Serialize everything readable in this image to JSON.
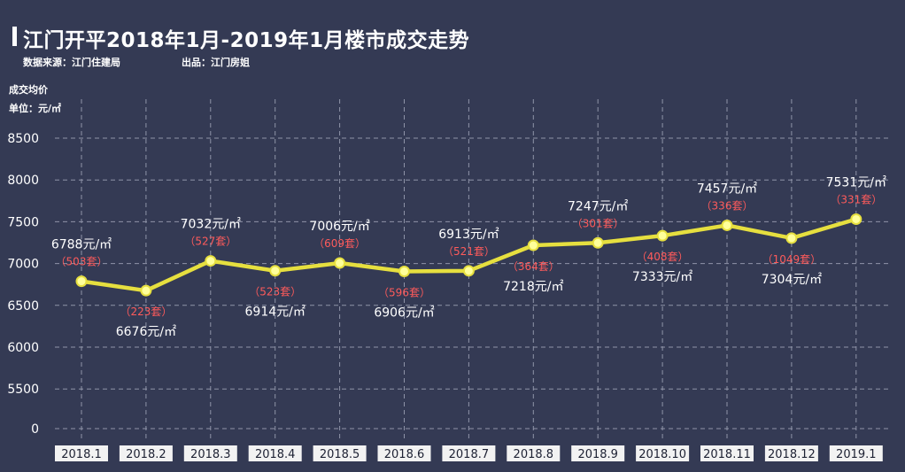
{
  "header": {
    "title": "江门开平2018年1月-2019年1月楼市成交走势",
    "source": "数据来源：江门住建局",
    "producer": "出品：江门房姐"
  },
  "colors": {
    "background": "#343a54",
    "line": "#e6df3f",
    "marker": "#ffff9a",
    "count_text": "#ff5b5b",
    "grid": "#8f94a8"
  },
  "chart_data": {
    "type": "line",
    "ylabel_line1": "成交均价",
    "ylabel_line2": "单位：元/㎡",
    "ylim": [
      0,
      8500
    ],
    "y_ticks": [
      0,
      5500,
      6000,
      6500,
      7000,
      7500,
      8000,
      8500
    ],
    "y_axis_break": true,
    "grid": true,
    "categories": [
      "2018.1",
      "2018.2",
      "2018.3",
      "2018.4",
      "2018.5",
      "2018.6",
      "2018.7",
      "2018.8",
      "2018.9",
      "2018.10",
      "2018.11",
      "2018.12",
      "2019.1"
    ],
    "series": [
      {
        "values": [
          6788,
          6676,
          7032,
          6914,
          7006,
          6906,
          6913,
          7218,
          7247,
          7333,
          7457,
          7304,
          7531
        ]
      }
    ],
    "price_labels": [
      "6788元/㎡",
      "6676元/㎡",
      "7032元/㎡",
      "6914元/㎡",
      "7006元/㎡",
      "6906元/㎡",
      "6913元/㎡",
      "7218元/㎡",
      "7247元/㎡",
      "7333元/㎡",
      "7457元/㎡",
      "7304元/㎡",
      "7531元/㎡"
    ],
    "count_labels": [
      "（503套）",
      "（223套）",
      "（527套）",
      "（523套）",
      "（609套）",
      "（596套）",
      "（521套）",
      "（364套）",
      "（301套）",
      "（408套）",
      "（336套）",
      "（1049套）",
      "（331套）"
    ],
    "label_side": [
      "above",
      "below",
      "above",
      "below",
      "above",
      "below",
      "above",
      "below",
      "above",
      "below",
      "above",
      "below",
      "above"
    ]
  }
}
